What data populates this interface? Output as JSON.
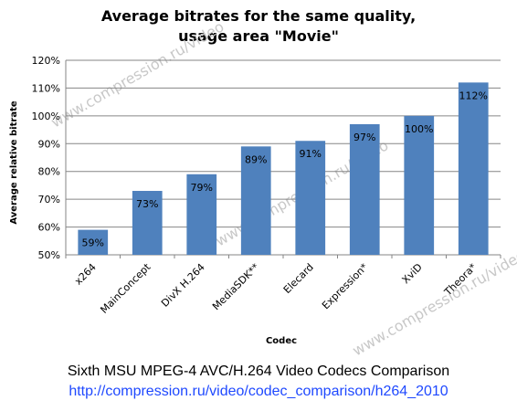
{
  "chart_data": {
    "type": "bar",
    "title_line1": "Average bitrates for the same quality,",
    "title_line2": "usage area \"Movie\"",
    "xlabel": "Codec",
    "ylabel": "Average relative bitrate",
    "categories": [
      "x264",
      "MainConcept",
      "DivX H.264",
      "MediaSDK**",
      "Elecard",
      "Expression*",
      "XviD",
      "Theora*"
    ],
    "values": [
      59,
      73,
      79,
      89,
      91,
      97,
      100,
      112
    ],
    "value_labels": [
      "59%",
      "73%",
      "79%",
      "89%",
      "91%",
      "97%",
      "100%",
      "112%"
    ],
    "y_ticks": [
      "50%",
      "60%",
      "70%",
      "80%",
      "90%",
      "100%",
      "110%",
      "120%"
    ],
    "ylim": [
      50,
      120
    ],
    "grid": true,
    "bar_color": "#4f81bd"
  },
  "footer": {
    "line1": "Sixth MSU MPEG-4 AVC/H.264 Video Codecs Comparison",
    "line2": "http://compression.ru/video/codec_comparison/h264_2010",
    "line2_color": "#1f49ff"
  },
  "watermark": "www.compression.ru/video"
}
